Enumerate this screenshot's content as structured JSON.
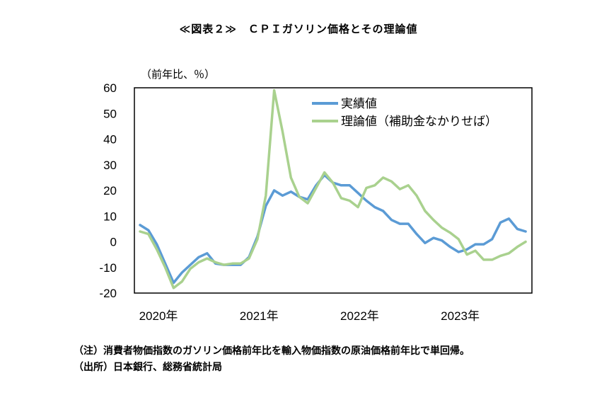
{
  "title": "≪図表２≫　ＣＰＩガソリン価格とその理論値",
  "notes": {
    "note": "（注）消費者物価指数のガソリン価格前年比を輸入物価指数の原油価格前年比で単回帰。",
    "source": "（出所）日本銀行、総務省統計局"
  },
  "chart_data": {
    "type": "line",
    "title": "≪図表２≫　ＣＰＩガソリン価格とその理論値",
    "ylabel": "（前年比、％）",
    "xlabel": "",
    "ylim": [
      -20,
      60
    ],
    "yticks": [
      60,
      50,
      40,
      30,
      20,
      10,
      0,
      -10,
      -20
    ],
    "xtick_labels": [
      "2020年",
      "2021年",
      "2022年",
      "2023年"
    ],
    "xtick_index": [
      0,
      12,
      24,
      36
    ],
    "x": [
      "2020-01",
      "2020-02",
      "2020-03",
      "2020-04",
      "2020-05",
      "2020-06",
      "2020-07",
      "2020-08",
      "2020-09",
      "2020-10",
      "2020-11",
      "2020-12",
      "2021-01",
      "2021-02",
      "2021-03",
      "2021-04",
      "2021-05",
      "2021-06",
      "2021-07",
      "2021-08",
      "2021-09",
      "2021-10",
      "2021-11",
      "2021-12",
      "2022-01",
      "2022-02",
      "2022-03",
      "2022-04",
      "2022-05",
      "2022-06",
      "2022-07",
      "2022-08",
      "2022-09",
      "2022-10",
      "2022-11",
      "2022-12",
      "2023-01",
      "2023-02",
      "2023-03",
      "2023-04",
      "2023-05",
      "2023-06",
      "2023-07",
      "2023-08",
      "2023-09",
      "2023-10",
      "2023-11"
    ],
    "grid": false,
    "legend_position": "top-right",
    "series": [
      {
        "name": "実績値",
        "color": "#5b9bd5",
        "values": [
          6.5,
          4.5,
          -1,
          -8.5,
          -16,
          -12,
          -9,
          -6,
          -4.5,
          -8.5,
          -9,
          -9,
          -9,
          -6,
          2,
          14,
          20,
          18,
          19.5,
          17.5,
          16.5,
          22,
          26,
          23,
          22,
          22,
          19,
          16,
          13.5,
          12,
          8.5,
          7,
          7,
          3,
          -0.5,
          1.5,
          0.5,
          -2,
          -4,
          -3,
          -1,
          -1,
          1,
          7.5,
          9,
          5,
          4
        ]
      },
      {
        "name": "理論値（補助金なかりせば）",
        "color": "#a9d18e",
        "values": [
          4,
          3,
          -3,
          -10,
          -18,
          -15.5,
          -10.5,
          -8,
          -6.5,
          -8,
          -9,
          -8.5,
          -8.5,
          -6.5,
          1,
          18,
          59,
          43,
          25,
          17.5,
          15,
          21,
          27,
          23,
          17,
          16,
          13.5,
          21,
          22,
          25,
          23.5,
          20.5,
          22,
          18,
          12,
          8.5,
          5.5,
          3.5,
          1,
          -5,
          -3.5,
          -7,
          -7,
          -5.5,
          -4.5,
          -2,
          0
        ]
      }
    ]
  }
}
